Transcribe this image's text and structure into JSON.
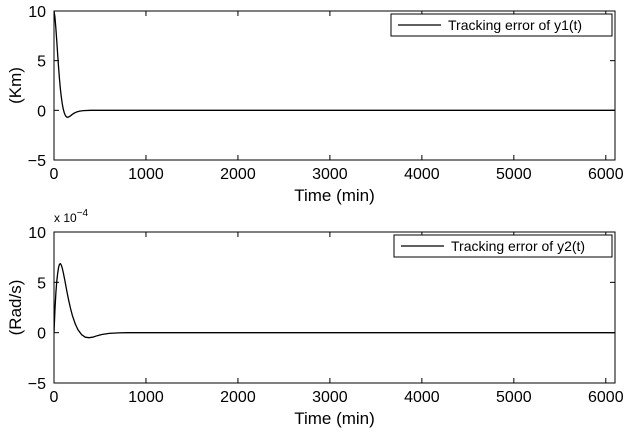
{
  "chart_data": [
    {
      "type": "line",
      "title": "",
      "xlabel": "Time (min)",
      "ylabel": "(Km)",
      "xlim": [
        0,
        6100
      ],
      "ylim": [
        -5,
        10
      ],
      "xticks": [
        0,
        1000,
        2000,
        3000,
        4000,
        5000,
        6000
      ],
      "yticks": [
        -5,
        0,
        5,
        10
      ],
      "xtick_labels": [
        "0",
        "1000",
        "2000",
        "3000",
        "4000",
        "5000",
        "6000"
      ],
      "ytick_labels": [
        "−5",
        "0",
        "5",
        "10"
      ],
      "scale_note": "",
      "legend_position": "top-right",
      "series": [
        {
          "name": "Tracking error of y1(t)",
          "color": "#000000",
          "x": [
            0,
            10,
            20,
            30,
            40,
            50,
            60,
            70,
            80,
            90,
            100,
            110,
            120,
            130,
            140,
            150,
            160,
            180,
            200,
            220,
            250,
            280,
            320,
            400,
            600,
            1000,
            2000,
            4000,
            6100
          ],
          "y": [
            10,
            9.4,
            8.3,
            7.0,
            5.6,
            4.3,
            3.1,
            2.1,
            1.3,
            0.65,
            0.15,
            -0.2,
            -0.45,
            -0.6,
            -0.68,
            -0.7,
            -0.66,
            -0.55,
            -0.4,
            -0.28,
            -0.15,
            -0.08,
            -0.03,
            0,
            0,
            0,
            0,
            0,
            0
          ]
        }
      ]
    },
    {
      "type": "line",
      "title": "",
      "xlabel": "Time (min)",
      "ylabel": "(Rad/s)",
      "xlim": [
        0,
        6100
      ],
      "ylim": [
        -5,
        10
      ],
      "xticks": [
        0,
        1000,
        2000,
        3000,
        4000,
        5000,
        6000
      ],
      "yticks": [
        -5,
        0,
        5,
        10
      ],
      "xtick_labels": [
        "0",
        "1000",
        "2000",
        "3000",
        "4000",
        "5000",
        "6000"
      ],
      "ytick_labels": [
        "−5",
        "0",
        "5",
        "10"
      ],
      "scale_note": "x 10",
      "scale_exponent": "−4",
      "legend_position": "top-right",
      "series": [
        {
          "name": "Tracking error of y2(t)",
          "color": "#000000",
          "x": [
            0,
            10,
            20,
            30,
            40,
            50,
            60,
            70,
            80,
            90,
            100,
            120,
            140,
            160,
            180,
            200,
            230,
            260,
            300,
            340,
            380,
            420,
            470,
            520,
            600,
            700,
            800,
            1000,
            2000,
            4000,
            6100
          ],
          "y": [
            0,
            2.2,
            3.9,
            5.1,
            5.9,
            6.5,
            6.8,
            6.85,
            6.7,
            6.4,
            6.0,
            5.1,
            4.1,
            3.2,
            2.4,
            1.7,
            0.9,
            0.3,
            -0.2,
            -0.45,
            -0.5,
            -0.45,
            -0.3,
            -0.18,
            -0.07,
            -0.02,
            0,
            0,
            0,
            0,
            0
          ]
        }
      ]
    }
  ]
}
